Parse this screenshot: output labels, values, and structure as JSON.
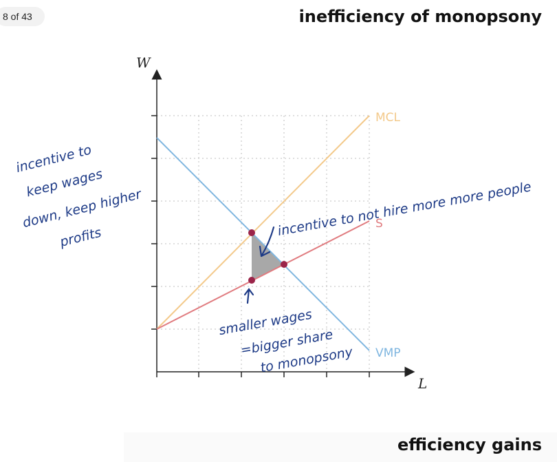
{
  "header": {
    "page_counter": "8 of 43",
    "title": "inefficiency of monopsony"
  },
  "footer": {
    "title": "efficiency gains"
  },
  "diagram": {
    "y_axis_label": "W",
    "x_axis_label": "L",
    "curves": [
      {
        "name": "MCL",
        "color": "#f3c98a"
      },
      {
        "name": "S",
        "color": "#e07b7f"
      },
      {
        "name": "VMP",
        "color": "#7fb6e0"
      }
    ],
    "point_color": "#9b2449",
    "deadweight_fill": "#a8a8a8"
  },
  "annotations": {
    "left_note": [
      "incentive to",
      "keep wages",
      "down, keep higher",
      "profits"
    ],
    "top_note": "incentive to not hire more more people",
    "bottom_note": [
      "smaller wages",
      "=bigger share",
      "to monopsony"
    ]
  }
}
